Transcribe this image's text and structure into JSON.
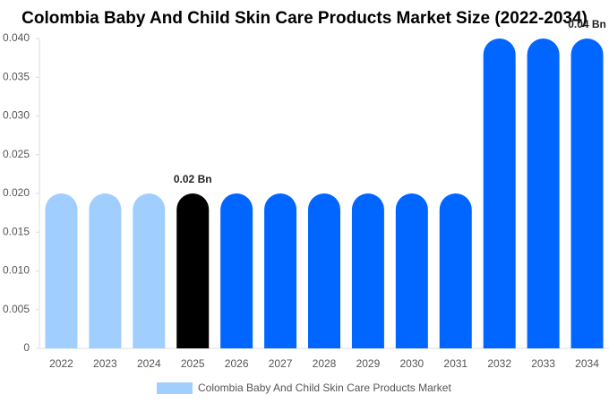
{
  "chart_data": {
    "type": "bar",
    "title": "Colombia Baby And Child Skin Care Products Market Size (2022-2034)",
    "categories": [
      "2022",
      "2023",
      "2024",
      "2025",
      "2026",
      "2027",
      "2028",
      "2029",
      "2030",
      "2031",
      "2032",
      "2033",
      "2034"
    ],
    "series": [
      {
        "name": "Colombia Baby And Child Skin Care Products Market",
        "color": "#a0cfff",
        "values": [
          0.02,
          0.02,
          0.02,
          0.02,
          0.02,
          0.02,
          0.02,
          0.02,
          0.02,
          0.02,
          0.04,
          0.04,
          0.04
        ],
        "colors": [
          "#a0cfff",
          "#a0cfff",
          "#a0cfff",
          "#000000",
          "#0066ff",
          "#0066ff",
          "#0066ff",
          "#0066ff",
          "#0066ff",
          "#0066ff",
          "#0066ff",
          "#0066ff",
          "#0066ff"
        ],
        "value_labels": [
          null,
          null,
          null,
          "0.02 Bn",
          null,
          null,
          null,
          null,
          null,
          null,
          null,
          null,
          "0.04 Bn"
        ]
      }
    ],
    "ylim": [
      0,
      0.04
    ],
    "yticks": [
      0,
      0.005,
      {
        "value": 0.01,
        "label": "0.010"
      },
      0.015,
      {
        "value": 0.02,
        "label": "0.020"
      },
      0.025,
      {
        "value": 0.03,
        "label": "0.030"
      },
      0.035,
      {
        "value": 0.04,
        "label": "0.040"
      }
    ],
    "grid": false
  }
}
